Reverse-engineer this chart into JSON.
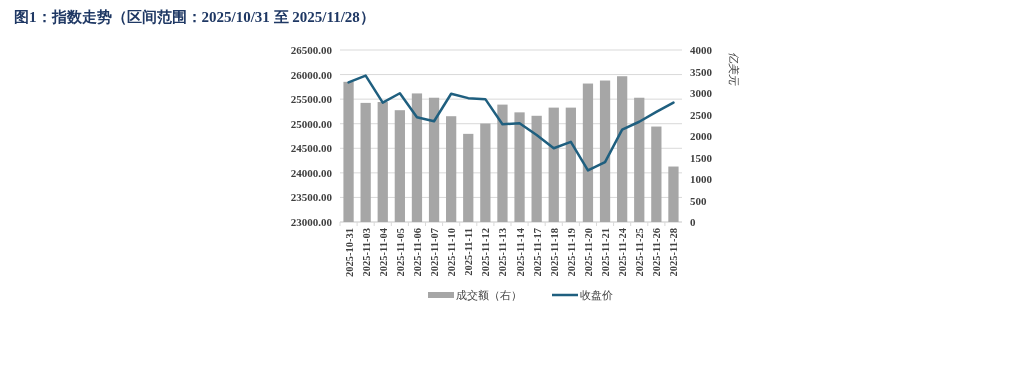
{
  "chart_data": {
    "type": "bar",
    "title": "图1：指数走势（区间范围：2025/10/31 至 2025/11/28）",
    "categories": [
      "2025-10-31",
      "2025-11-03",
      "2025-11-04",
      "2025-11-05",
      "2025-11-06",
      "2025-11-07",
      "2025-11-10",
      "2025-11-11",
      "2025-11-12",
      "2025-11-13",
      "2025-11-14",
      "2025-11-17",
      "2025-11-18",
      "2025-11-19",
      "2025-11-20",
      "2025-11-21",
      "2025-11-24",
      "2025-11-25",
      "2025-11-26",
      "2025-11-28"
    ],
    "series": [
      {
        "name": "成交额（右）",
        "axis": "y2",
        "color": "#a6a6a6",
        "values": [
          3260,
          2770,
          2790,
          2600,
          2990,
          2890,
          2460,
          2050,
          2290,
          2730,
          2550,
          2470,
          2660,
          2660,
          3220,
          3290,
          3390,
          2890,
          2220,
          1290
        ]
      },
      {
        "name": "收盘价",
        "type": "line",
        "color": "#1f5f7f",
        "values": [
          25840,
          25980,
          25430,
          25620,
          25130,
          25050,
          25610,
          25520,
          25500,
          24990,
          25010,
          24770,
          24500,
          24630,
          24050,
          24220,
          24880,
          25040,
          25240,
          25430
        ]
      }
    ],
    "ylim": [
      23000,
      26500
    ],
    "yticks": [
      {
        "value": 23000,
        "label": "23000.00"
      },
      {
        "value": 23500,
        "label": "23500.00"
      },
      {
        "value": 24000,
        "label": "24000.00"
      },
      {
        "value": 24500,
        "label": "24500.00"
      },
      {
        "value": 25000,
        "label": "25000.00"
      },
      {
        "value": 25500,
        "label": "25500.00"
      },
      {
        "value": 26000,
        "label": "26000.00"
      },
      {
        "value": 26500,
        "label": "26500.00"
      }
    ],
    "y2lim": [
      0,
      4000
    ],
    "y2ticks": [
      0,
      500,
      1000,
      1500,
      2000,
      2500,
      3000,
      3500,
      4000
    ],
    "y2label": "亿美元",
    "grid": "y",
    "legend": "bottom"
  }
}
